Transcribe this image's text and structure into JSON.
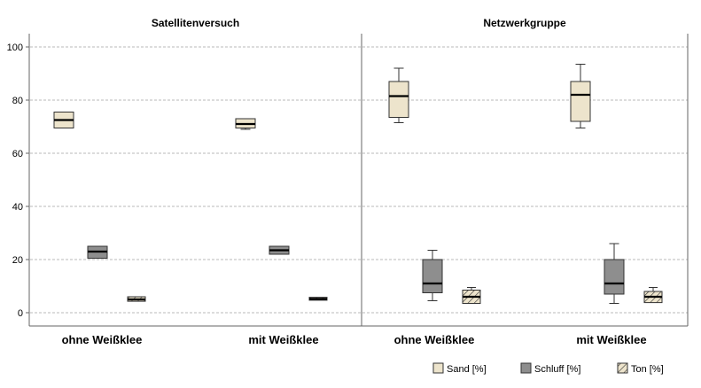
{
  "chart_data": {
    "type": "boxplot",
    "ylim": [
      -5,
      105
    ],
    "yticks": [
      0,
      20,
      40,
      60,
      80,
      100
    ],
    "grid": true,
    "legend_position": "bottom-right",
    "series_styles": [
      {
        "name": "Sand [%]",
        "fill": "#ede4cc",
        "pattern": "none"
      },
      {
        "name": "Schluff [%]",
        "fill": "#8e8e8e",
        "pattern": "none"
      },
      {
        "name": "Ton [%]",
        "fill": "#ede4cc",
        "pattern": "hatch"
      }
    ],
    "panels": [
      {
        "title": "Satellitenversuch",
        "categories": [
          {
            "label": "ohne Weißklee",
            "boxes": [
              {
                "series": "Sand [%]",
                "min": 69.5,
                "q1": 69.5,
                "median": 72.5,
                "q3": 75.5,
                "max": 75.5
              },
              {
                "series": "Schluff [%]",
                "min": 20.5,
                "q1": 20.5,
                "median": 23.0,
                "q3": 25.0,
                "max": 25.0
              },
              {
                "series": "Ton [%]",
                "min": 4.3,
                "q1": 4.3,
                "median": 5.0,
                "q3": 6.0,
                "max": 6.0
              }
            ]
          },
          {
            "label": "mit Weißklee",
            "boxes": [
              {
                "series": "Sand [%]",
                "min": 69.0,
                "q1": 69.5,
                "median": 71.0,
                "q3": 73.0,
                "max": 73.0
              },
              {
                "series": "Schluff [%]",
                "min": 22.0,
                "q1": 22.0,
                "median": 23.5,
                "q3": 25.0,
                "max": 25.0
              },
              {
                "series": "Ton [%]",
                "min": 4.7,
                "q1": 4.7,
                "median": 5.2,
                "q3": 5.8,
                "max": 5.8
              }
            ]
          }
        ]
      },
      {
        "title": "Netzwerkgruppe",
        "categories": [
          {
            "label": "ohne Weißklee",
            "boxes": [
              {
                "series": "Sand [%]",
                "min": 71.5,
                "q1": 73.5,
                "median": 81.5,
                "q3": 87.0,
                "max": 92.0
              },
              {
                "series": "Schluff [%]",
                "min": 4.5,
                "q1": 7.5,
                "median": 11.0,
                "q3": 20.0,
                "max": 23.5
              },
              {
                "series": "Ton [%]",
                "min": 3.5,
                "q1": 3.5,
                "median": 6.0,
                "q3": 8.5,
                "max": 9.5
              }
            ]
          },
          {
            "label": "mit Weißklee",
            "boxes": [
              {
                "series": "Sand [%]",
                "min": 69.5,
                "q1": 72.0,
                "median": 82.0,
                "q3": 87.0,
                "max": 93.5
              },
              {
                "series": "Schluff [%]",
                "min": 3.5,
                "q1": 7.0,
                "median": 11.0,
                "q3": 20.0,
                "max": 26.0
              },
              {
                "series": "Ton [%]",
                "min": 3.8,
                "q1": 3.8,
                "median": 6.0,
                "q3": 8.0,
                "max": 9.5
              }
            ]
          }
        ]
      }
    ]
  }
}
